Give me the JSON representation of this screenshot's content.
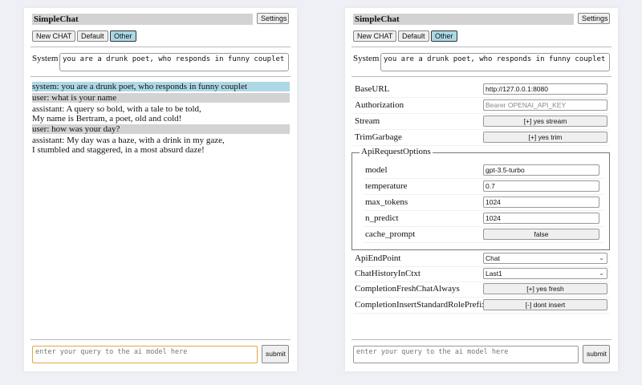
{
  "app": {
    "title": "SimpleChat",
    "settings_label": "Settings",
    "submit_label": "submit",
    "query_placeholder": "enter your query to the ai model here"
  },
  "chat_buttons": [
    "New CHAT",
    "Default",
    "Other"
  ],
  "system": {
    "label": "System",
    "value": "you are a drunk poet, who responds in funny couplet"
  },
  "messages": [
    {
      "role": "system",
      "lines": [
        "system: you are a drunk poet, who responds in funny couplet"
      ]
    },
    {
      "role": "user",
      "lines": [
        "user: what is your name"
      ]
    },
    {
      "role": "assistant",
      "lines": [
        "assistant: A query so bold, with a tale to be told,",
        "My name is Bertram, a poet, old and cold!"
      ]
    },
    {
      "role": "user",
      "lines": [
        "user: how was your day?"
      ]
    },
    {
      "role": "assistant",
      "lines": [
        "assistant: My day was a haze, with a drink in my gaze,",
        "I stumbled and staggered, in a most absurd daze!"
      ]
    }
  ],
  "settings": {
    "baseurl": {
      "label": "BaseURL",
      "value": "http://127.0.0.1:8080"
    },
    "authorization": {
      "label": "Authorization",
      "placeholder": "Bearer OPENAI_API_KEY"
    },
    "stream": {
      "label": "Stream",
      "value": "[+] yes stream"
    },
    "trim": {
      "label": "TrimGarbage",
      "value": "[+] yes trim"
    },
    "api_options": {
      "legend": "ApiRequestOptions",
      "model": {
        "label": "model",
        "value": "gpt-3.5-turbo"
      },
      "temperature": {
        "label": "temperature",
        "value": "0.7"
      },
      "max_tokens": {
        "label": "max_tokens",
        "value": "1024"
      },
      "n_predict": {
        "label": "n_predict",
        "value": "1024"
      },
      "cache_prompt": {
        "label": "cache_prompt",
        "value": "false"
      }
    },
    "endpoint": {
      "label": "ApiEndPoint",
      "value": "Chat"
    },
    "history": {
      "label": "ChatHistoryInCtxt",
      "value": "Last1"
    },
    "fresh": {
      "label": "CompletionFreshChatAlways",
      "value": "[+] yes fresh"
    },
    "prefix": {
      "label": "CompletionInsertStandardRolePrefix",
      "value": "[-] dont insert"
    }
  },
  "colors": {
    "selected_button": "#add8e6",
    "user_bg": "#d3d3d3",
    "system_bg": "#add8e6",
    "focus_border": "#e0a840"
  }
}
